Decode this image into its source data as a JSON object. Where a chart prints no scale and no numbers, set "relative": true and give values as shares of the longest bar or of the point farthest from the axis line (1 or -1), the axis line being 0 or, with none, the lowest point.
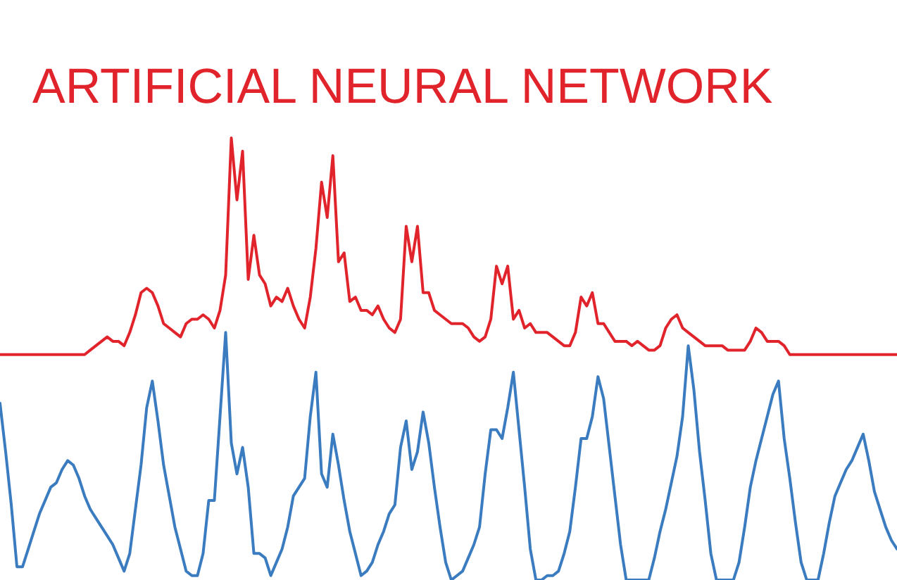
{
  "chart_data": {
    "type": "line",
    "title": "ARTIFICIAL NEURAL NETWORK",
    "relative": true,
    "marker": "none",
    "tick_labels": false,
    "categories": [
      null,
      null,
      null,
      null,
      null,
      null,
      null,
      null,
      null,
      null,
      null,
      null,
      null,
      null,
      null,
      null,
      null,
      null,
      null,
      null,
      null,
      null,
      null,
      null,
      null,
      null,
      null,
      null,
      null,
      null,
      null,
      null,
      null,
      null,
      null,
      null,
      null,
      null,
      null,
      null,
      null,
      null,
      null,
      null,
      null,
      null,
      null,
      null,
      null,
      null,
      null,
      null,
      null,
      null,
      null,
      null,
      null,
      null,
      null,
      null,
      null,
      null,
      null,
      null,
      null,
      null,
      null,
      null,
      null,
      null,
      null,
      null,
      null,
      null,
      null,
      null,
      null,
      null,
      null,
      null,
      null,
      null,
      null,
      null,
      null,
      null,
      null,
      null,
      null,
      null,
      null,
      null,
      null,
      null,
      null,
      null,
      null,
      null,
      null,
      null,
      null,
      null,
      null,
      null,
      null,
      null,
      null,
      null,
      null,
      null,
      null,
      null,
      null,
      null,
      null,
      null,
      null,
      null,
      null,
      null,
      null,
      null,
      null,
      null,
      null,
      null,
      null,
      null,
      null,
      null,
      null,
      null,
      null,
      null,
      null,
      null,
      null,
      null,
      null,
      null,
      null,
      null,
      null,
      null,
      null,
      null,
      null,
      null,
      null,
      null,
      null,
      null,
      null,
      null,
      null,
      null,
      null,
      null,
      null,
      null
    ],
    "series": [
      {
        "color": "#e1242b",
        "values": [
          0.51,
          0.51,
          0.51,
          0.51,
          0.51,
          0.51,
          0.51,
          0.51,
          0.51,
          0.51,
          0.51,
          0.51,
          0.51,
          0.51,
          0.51,
          0.51,
          0.52,
          0.53,
          0.54,
          0.55,
          0.54,
          0.54,
          0.53,
          0.56,
          0.6,
          0.65,
          0.66,
          0.65,
          0.62,
          0.58,
          0.57,
          0.56,
          0.55,
          0.58,
          0.59,
          0.59,
          0.6,
          0.59,
          0.57,
          0.61,
          0.69,
          1,
          0.86,
          0.97,
          0.68,
          0.78,
          0.69,
          0.67,
          0.62,
          0.64,
          0.63,
          0.66,
          0.62,
          0.59,
          0.57,
          0.64,
          0.75,
          0.9,
          0.82,
          0.96,
          0.72,
          0.74,
          0.63,
          0.64,
          0.61,
          0.61,
          0.6,
          0.62,
          0.59,
          0.57,
          0.56,
          0.59,
          0.8,
          0.72,
          0.8,
          0.65,
          0.65,
          0.61,
          0.6,
          0.59,
          0.58,
          0.58,
          0.58,
          0.57,
          0.55,
          0.54,
          0.55,
          0.59,
          0.71,
          0.67,
          0.71,
          0.59,
          0.61,
          0.57,
          0.58,
          0.56,
          0.56,
          0.56,
          0.55,
          0.54,
          0.53,
          0.53,
          0.56,
          0.64,
          0.62,
          0.65,
          0.58,
          0.58,
          0.56,
          0.54,
          0.54,
          0.54,
          0.53,
          0.54,
          0.53,
          0.52,
          0.52,
          0.53,
          0.57,
          0.59,
          0.6,
          0.57,
          0.56,
          0.55,
          0.54,
          0.53,
          0.53,
          0.53,
          0.53,
          0.52,
          0.52,
          0.52,
          0.52,
          0.54,
          0.57,
          0.56,
          0.54,
          0.54,
          0.54,
          0.53,
          0.51,
          0.51,
          0.51,
          0.51,
          0.51,
          0.51,
          0.51,
          0.51,
          0.51,
          0.51,
          0.51,
          0.51,
          0.51,
          0.51,
          0.51,
          0.51,
          0.51,
          0.51,
          0.51,
          0.51
        ]
      },
      {
        "color": "#3a7cbf",
        "values": [
          0.4,
          0.29,
          0.17,
          0.03,
          0.03,
          0.07,
          0.11,
          0.15,
          0.18,
          0.21,
          0.22,
          0.25,
          0.27,
          0.26,
          0.23,
          0.19,
          0.16,
          0.14,
          0.12,
          0.1,
          0.08,
          0.05,
          0.02,
          0.06,
          0.16,
          0.26,
          0.39,
          0.45,
          0.36,
          0.26,
          0.19,
          0.12,
          0.07,
          0.02,
          0.01,
          0.01,
          0.06,
          0.18,
          0.18,
          0.37,
          0.56,
          0.31,
          0.24,
          0.3,
          0.21,
          0.06,
          0.06,
          0.05,
          0.01,
          0.04,
          0.07,
          0.12,
          0.19,
          0.21,
          0.23,
          0.37,
          0.47,
          0.24,
          0.21,
          0.33,
          0.26,
          0.18,
          0.11,
          0.06,
          0.01,
          0.02,
          0.04,
          0.08,
          0.11,
          0.15,
          0.17,
          0.3,
          0.36,
          0.25,
          0.29,
          0.38,
          0.31,
          0.21,
          0.12,
          0.04,
          0,
          0.01,
          0.02,
          0.05,
          0.08,
          0.12,
          0.24,
          0.34,
          0.34,
          0.32,
          0.39,
          0.47,
          0.34,
          0.21,
          0.07,
          0,
          0,
          0.01,
          0.01,
          0.02,
          0.06,
          0.11,
          0.21,
          0.32,
          0.32,
          0.37,
          0.46,
          0.41,
          0.3,
          0.19,
          0.08,
          0,
          0,
          0,
          0,
          0,
          0.05,
          0.11,
          0.16,
          0.22,
          0.28,
          0.37,
          0.53,
          0.43,
          0.29,
          0.18,
          0.06,
          0,
          0,
          0,
          0,
          0.04,
          0.12,
          0.21,
          0.27,
          0.32,
          0.37,
          0.42,
          0.45,
          0.32,
          0.23,
          0.13,
          0.04,
          0,
          0,
          0,
          0.06,
          0.13,
          0.19,
          0.22,
          0.25,
          0.27,
          0.3,
          0.33,
          0.27,
          0.2,
          0.16,
          0.12,
          0.09,
          0.07
        ]
      }
    ]
  }
}
